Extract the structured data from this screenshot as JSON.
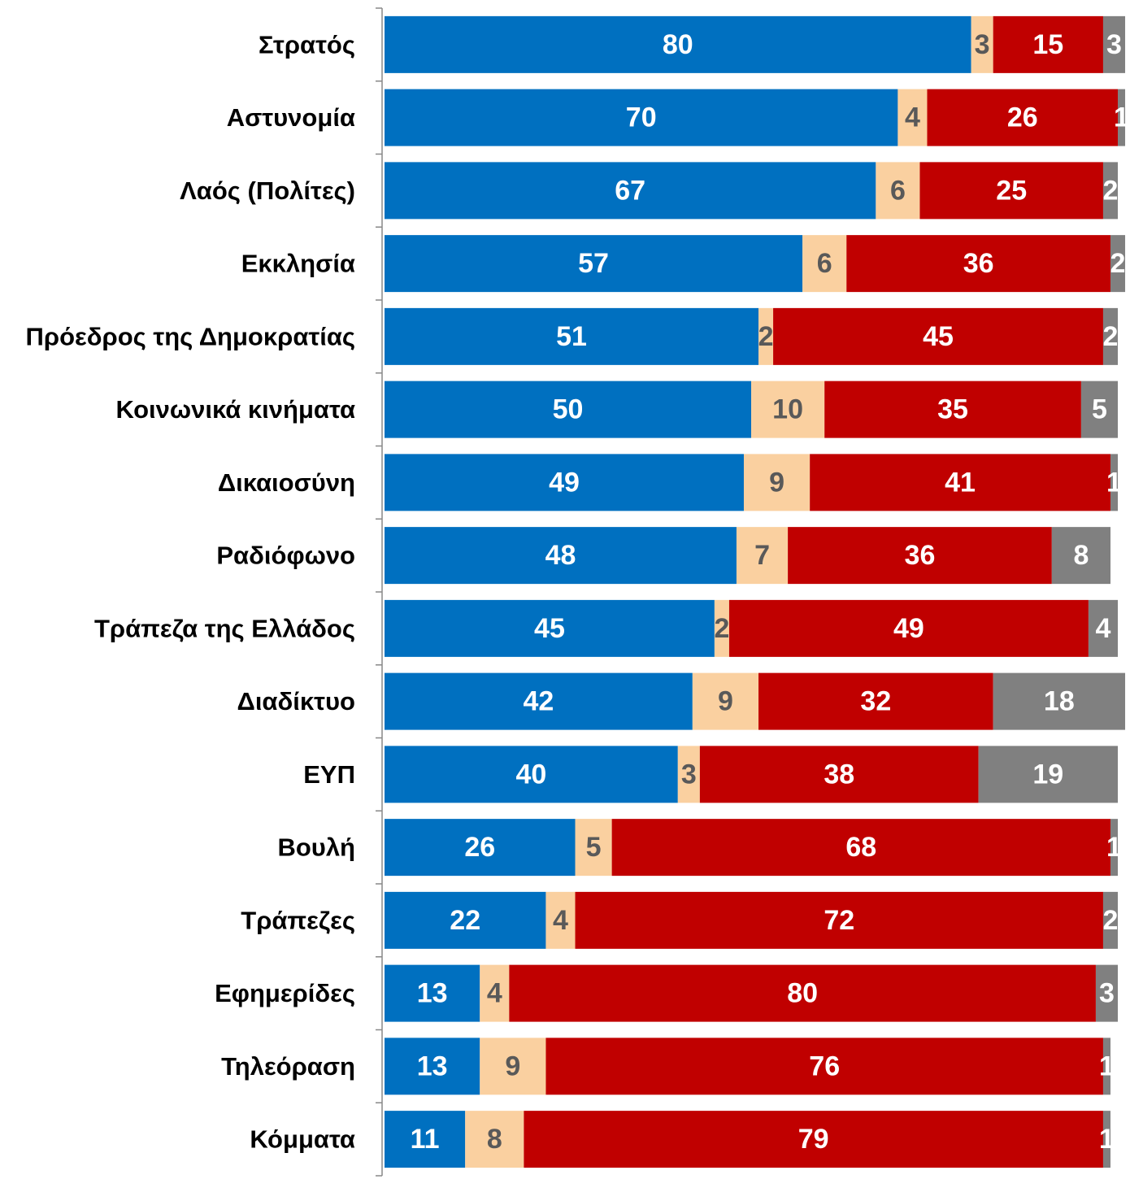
{
  "chart_data": {
    "type": "bar",
    "orientation": "horizontal",
    "stacked": true,
    "categories": [
      "Στρατός",
      "Αστυνομία",
      "Λαός (Πολίτες)",
      "Εκκλησία",
      "Πρόεδρος της Δημοκρατίας",
      "Κοινωνικά κινήματα",
      "Δικαιοσύνη",
      "Ραδιόφωνο",
      "Τράπεζα της Ελλάδος",
      "Διαδίκτυο",
      "ΕΥΠ",
      "Βουλή",
      "Τράπεζες",
      "Εφημερίδες",
      "Τηλεόραση",
      "Κόμματα"
    ],
    "series": [
      {
        "values": [
          80,
          70,
          67,
          57,
          51,
          50,
          49,
          48,
          45,
          42,
          40,
          26,
          22,
          13,
          13,
          11
        ],
        "color": "#0070C0",
        "label_color": "#FFFFFF"
      },
      {
        "values": [
          3,
          4,
          6,
          6,
          2,
          10,
          9,
          7,
          2,
          9,
          3,
          5,
          4,
          4,
          9,
          8
        ],
        "color": "#FAD0A0",
        "label_color": "#595959"
      },
      {
        "values": [
          15,
          26,
          25,
          36,
          45,
          35,
          41,
          36,
          49,
          32,
          38,
          68,
          72,
          80,
          76,
          79
        ],
        "color": "#C00000",
        "label_color": "#FFFFFF"
      },
      {
        "values": [
          3,
          1,
          2,
          2,
          2,
          5,
          1,
          8,
          4,
          18,
          19,
          1,
          2,
          3,
          1,
          1
        ],
        "color": "#808080",
        "label_color": "#FFFFFF"
      }
    ],
    "xlim": [
      0,
      100
    ],
    "xaxis_visible": false,
    "grid": false,
    "legend": "none"
  }
}
